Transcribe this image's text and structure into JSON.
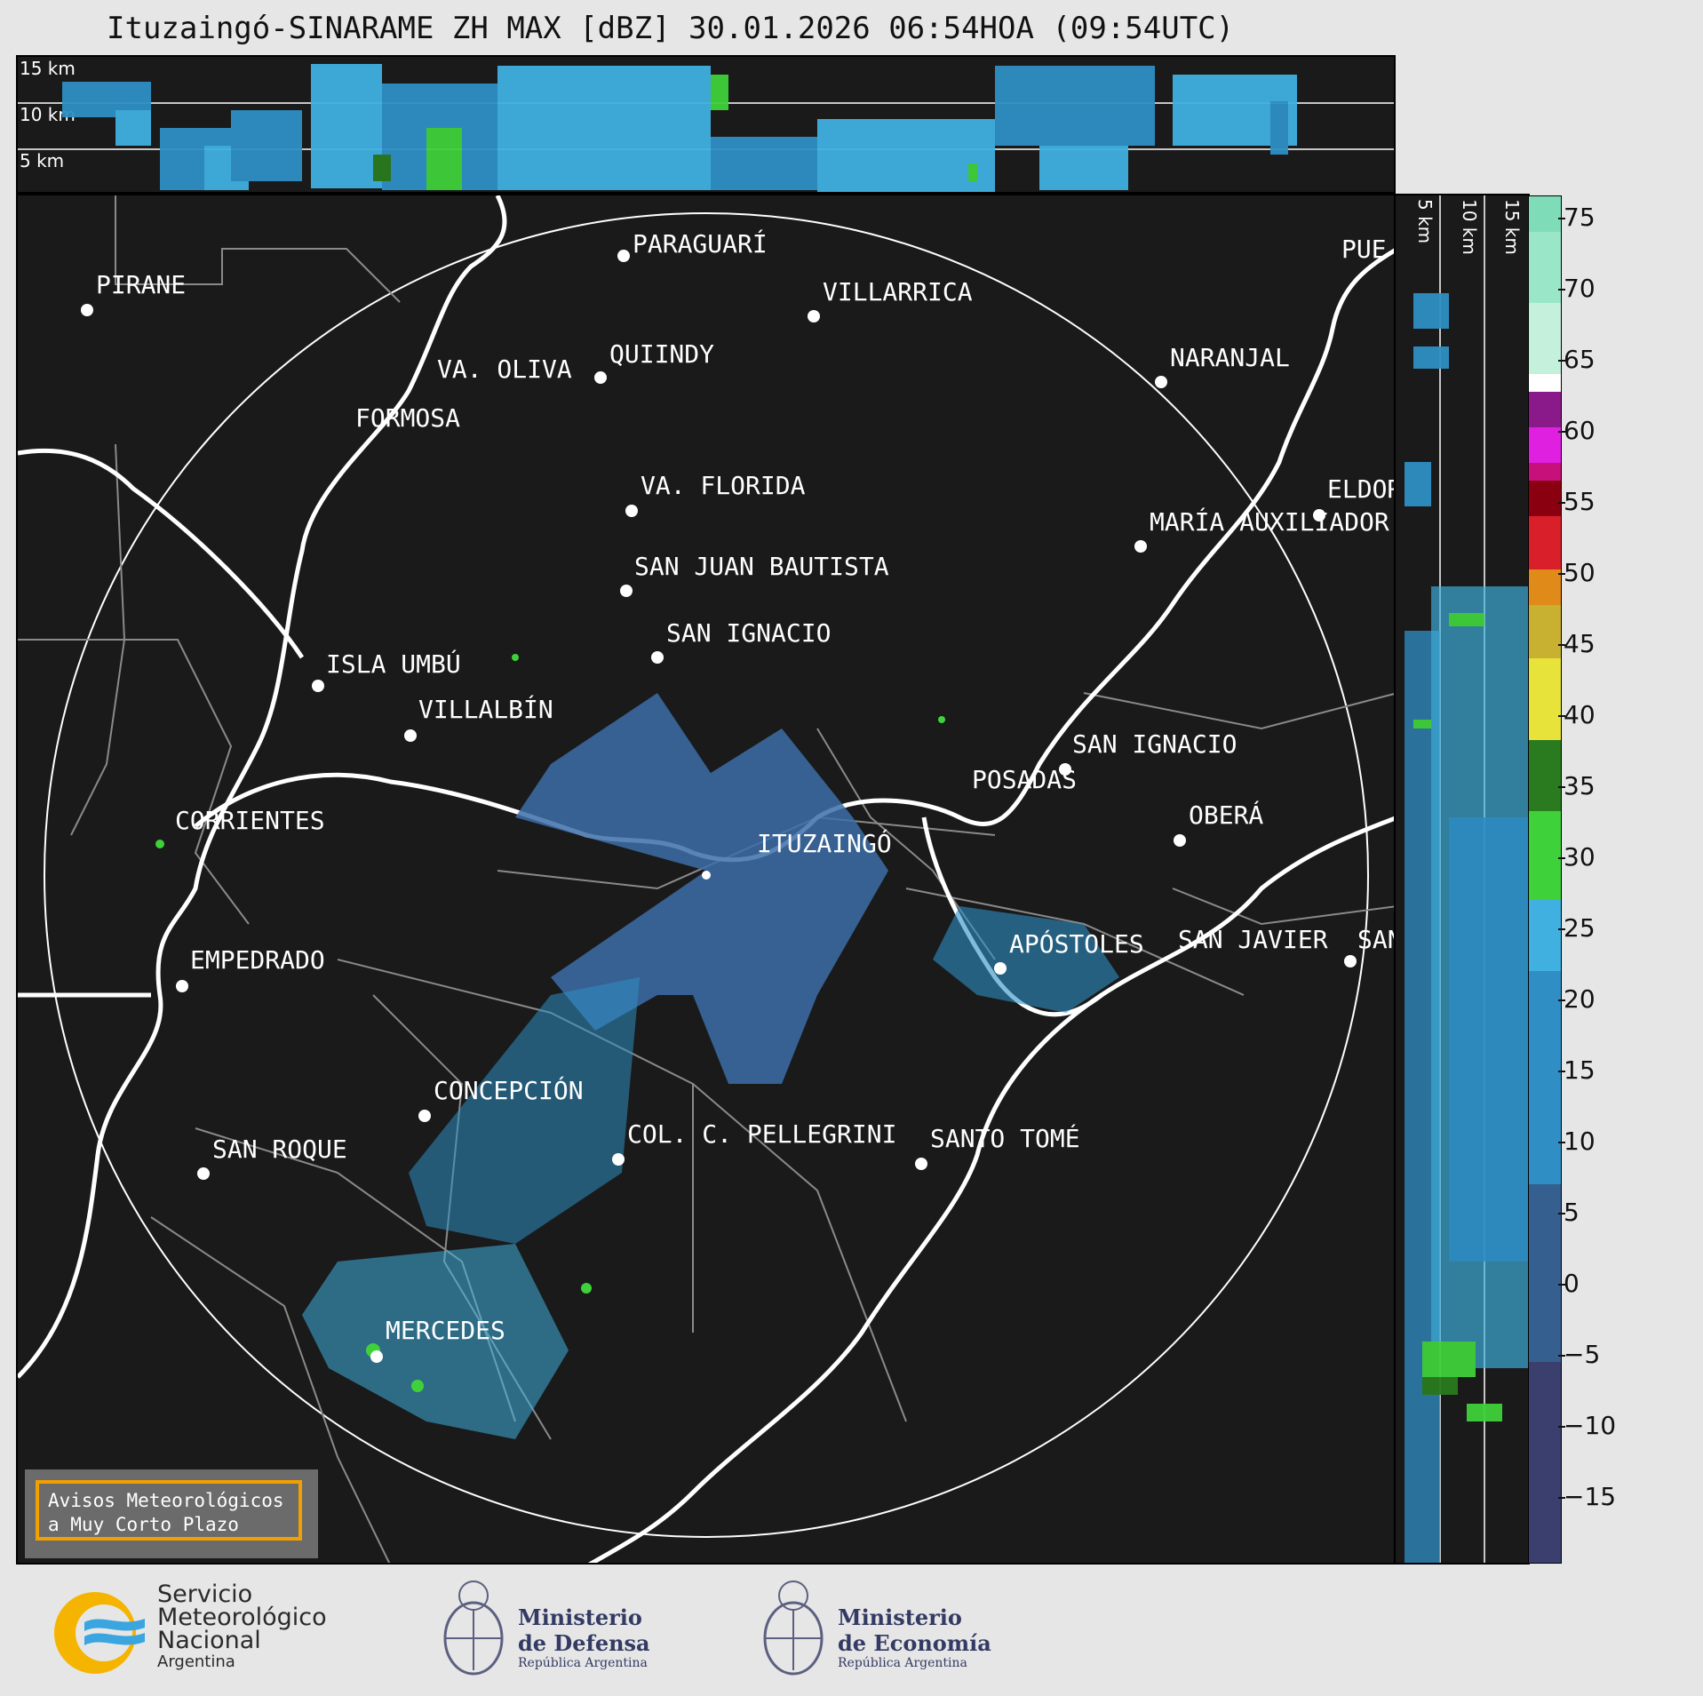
{
  "title": "Ituzaingó-SINARAME ZH MAX [dBZ] 30.01.2026 06:54HOA (09:54UTC)",
  "top_profile": {
    "height_labels": [
      "15 km",
      "10 km",
      "5 km"
    ]
  },
  "side_profile": {
    "height_labels": [
      "5 km",
      "10 km",
      "15 km"
    ]
  },
  "map": {
    "cities": [
      {
        "name": "PARAGUARÍ"
      },
      {
        "name": "VILLARRICA"
      },
      {
        "name": "PIRANE"
      },
      {
        "name": "QUIINDY"
      },
      {
        "name": "VA. OLIVA"
      },
      {
        "name": "NARANJAL"
      },
      {
        "name": "FORMOSA"
      },
      {
        "name": "VA. FLORIDA"
      },
      {
        "name": "ELDOR"
      },
      {
        "name": "MARÍA AUXILIADOR"
      },
      {
        "name": "SAN JUAN BAUTISTA"
      },
      {
        "name": "SAN IGNACIO"
      },
      {
        "name": "ISLA UMBÚ"
      },
      {
        "name": "VILLALBÍN"
      },
      {
        "name": "SAN IGNACIO"
      },
      {
        "name": "POSADAS"
      },
      {
        "name": "CORRIENTES"
      },
      {
        "name": "ITUZAINGÓ"
      },
      {
        "name": "OBERÁ"
      },
      {
        "name": "EMPEDRADO"
      },
      {
        "name": "APÓSTOLES"
      },
      {
        "name": "SAN JAVIER"
      },
      {
        "name": "SAN"
      },
      {
        "name": "CONCEPCIÓN"
      },
      {
        "name": "COL. C. PELLEGRINI"
      },
      {
        "name": "SAN ROQUE"
      },
      {
        "name": "SANTO TOMÉ"
      },
      {
        "name": "MERCEDES"
      },
      {
        "name": "PUE"
      }
    ],
    "alert_box": {
      "line1": "Avisos Meteorológicos",
      "line2": "a Muy Corto Plazo"
    }
  },
  "colorbar": {
    "unit": "dBZ",
    "ticks": [
      "75",
      "70",
      "65",
      "60",
      "55",
      "50",
      "45",
      "40",
      "35",
      "30",
      "25",
      "20",
      "15",
      "10",
      "5",
      "0",
      "−5",
      "−10",
      "−15"
    ],
    "colors": {
      "low": "#3a3f6e",
      "mid_blue": "#2f8fc4",
      "light_blue": "#3fb0e0",
      "green": "#3fd13a",
      "dark_green": "#2a7a1f",
      "yellow": "#e8e33a",
      "orange": "#e08a1a",
      "red": "#d9202a",
      "dark_red": "#8a0010",
      "magenta": "#e020e0",
      "purple": "#8a1a8a",
      "white": "#ffffff",
      "mint": "#7fdcb8"
    }
  },
  "logos": {
    "smn": {
      "line1": "Servicio",
      "line2": "Meteorológico",
      "line3": "Nacional",
      "line4": "Argentina"
    },
    "defensa": {
      "line1": "Ministerio",
      "line2": "de Defensa",
      "line3": "República Argentina"
    },
    "economia": {
      "line1": "Ministerio",
      "line2": "de Economía",
      "line3": "República Argentina"
    }
  }
}
